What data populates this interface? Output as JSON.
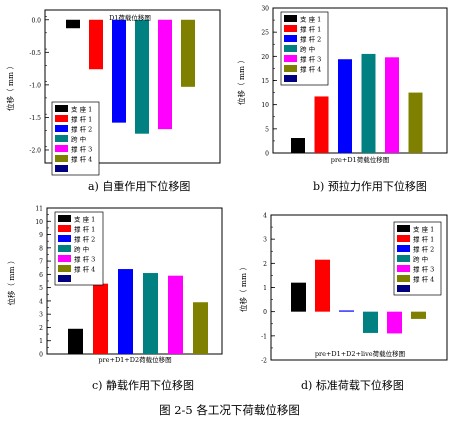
{
  "legend": [
    {
      "name": "支 座 1",
      "color": "#000000"
    },
    {
      "name": "撑 杆 1",
      "color": "#ff0000"
    },
    {
      "name": "撑 杆 2",
      "color": "#0000ff"
    },
    {
      "name": "跨 中",
      "color": "#008080"
    },
    {
      "name": "撑 杆 3",
      "color": "#ff00ff"
    },
    {
      "name": "撑 杆 4",
      "color": "#808000"
    }
  ],
  "legend_extra_swatch_color": "#000080",
  "ylabel": "位移（ mm ）",
  "figure_caption": "图 2-5  各工况下荷载位移图",
  "chart_data": [
    {
      "id": "a",
      "type": "bar",
      "title": "D1荷载位移图",
      "caption": "a)  自重作用下位移图",
      "ylabel": "位移（ mm ）",
      "ylim": [
        -2.2,
        0.15
      ],
      "yticks": [
        0.0,
        -0.5,
        -1.0,
        -1.5,
        -2.0
      ],
      "ytick_labels": [
        "0.0",
        "-0.5",
        "-1.0",
        "-1.5",
        "-2.0"
      ],
      "minor_tick_step": 0.25,
      "legend_position": "bottom-left",
      "categories": [
        "支座1",
        "撑杆1",
        "撑杆2",
        "跨中",
        "撑杆3",
        "撑杆4"
      ],
      "values": [
        -0.13,
        -0.76,
        -1.58,
        -1.75,
        -1.68,
        -1.03
      ]
    },
    {
      "id": "b",
      "type": "bar",
      "title": "pre+D1荷载位移图",
      "caption": "b)  预拉力作用下位移图",
      "ylabel": "位移（ mm ）",
      "ylim": [
        0,
        30
      ],
      "yticks": [
        0,
        5,
        10,
        15,
        20,
        25,
        30
      ],
      "ytick_labels": [
        "0",
        "5",
        "10",
        "15",
        "20",
        "25",
        "30"
      ],
      "minor_tick_step": 2.5,
      "legend_position": "top-left",
      "categories": [
        "支座1",
        "撑杆1",
        "撑杆2",
        "跨中",
        "撑杆3",
        "撑杆4"
      ],
      "values": [
        3.1,
        11.7,
        19.4,
        20.5,
        19.8,
        12.5
      ]
    },
    {
      "id": "c",
      "type": "bar",
      "title": "pre+D1+D2荷载位移图",
      "caption": "c)  静载作用下位移图",
      "ylabel": "位移（ mm ）",
      "ylim": [
        0,
        11
      ],
      "yticks": [
        0,
        1,
        2,
        3,
        4,
        5,
        6,
        7,
        8,
        9,
        10,
        11
      ],
      "ytick_labels": [
        "0",
        "1",
        "2",
        "3",
        "4",
        "5",
        "6",
        "7",
        "8",
        "9",
        "10",
        "11"
      ],
      "minor_tick_step": 0.5,
      "legend_position": "top-left",
      "categories": [
        "支座1",
        "撑杆1",
        "撑杆2",
        "跨中",
        "撑杆3",
        "撑杆4"
      ],
      "values": [
        1.9,
        5.3,
        6.4,
        6.1,
        5.9,
        3.9
      ]
    },
    {
      "id": "d",
      "type": "bar",
      "title": "pre+D1+D2+live荷载位移图",
      "caption": "d)  标准荷载下位移图",
      "ylabel": "位移（ mm ）",
      "ylim": [
        -2,
        4
      ],
      "yticks": [
        -2,
        -1,
        0,
        1,
        2,
        3,
        4
      ],
      "ytick_labels": [
        "-2",
        "-1",
        "0",
        "1",
        "2",
        "3",
        "4"
      ],
      "minor_tick_step": 0.5,
      "legend_position": "top-right",
      "categories": [
        "支座1",
        "撑杆1",
        "撑杆2",
        "跨中",
        "撑杆3",
        "撑杆4"
      ],
      "values": [
        1.2,
        2.15,
        0.05,
        -0.88,
        -0.9,
        -0.3
      ]
    }
  ]
}
